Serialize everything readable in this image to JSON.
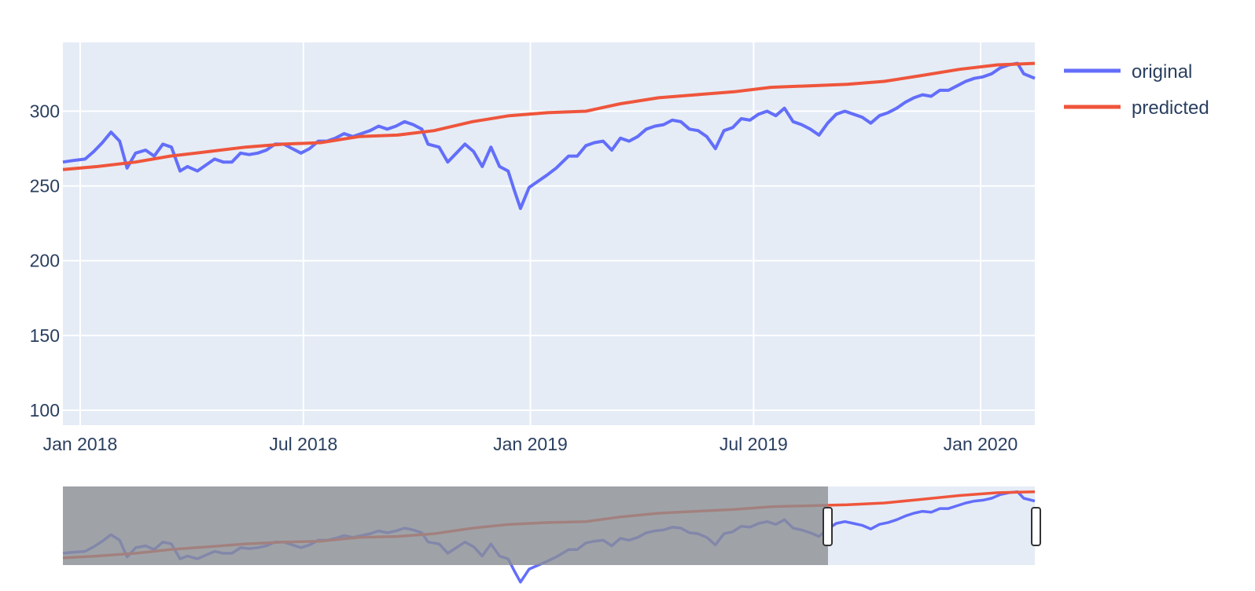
{
  "chart_data": {
    "type": "line",
    "title": "",
    "xlabel": "",
    "ylabel": "",
    "xlim": [
      "2017-12-18",
      "2020-02-14"
    ],
    "ylim": [
      90,
      346
    ],
    "x_ticks": [
      "Jan 2018",
      "Jul 2018",
      "Jan 2019",
      "Jul 2019",
      "Jan 2020"
    ],
    "y_ticks": [
      "100",
      "150",
      "200",
      "250",
      "300"
    ],
    "grid": true,
    "legend_position": "top-right",
    "colors": {
      "original": "#636efa",
      "predicted": "#ef553b",
      "plot_bg": "#e5ecf6",
      "range_mask": "#8c8e92"
    },
    "series": [
      {
        "name": "original",
        "points": [
          [
            "2017-12-18",
            266
          ],
          [
            "2017-12-26",
            267
          ],
          [
            "2018-01-05",
            268
          ],
          [
            "2018-01-12",
            273
          ],
          [
            "2018-01-19",
            279
          ],
          [
            "2018-01-26",
            286
          ],
          [
            "2018-02-02",
            280
          ],
          [
            "2018-02-08",
            262
          ],
          [
            "2018-02-15",
            272
          ],
          [
            "2018-02-23",
            274
          ],
          [
            "2018-03-02",
            270
          ],
          [
            "2018-03-09",
            278
          ],
          [
            "2018-03-16",
            276
          ],
          [
            "2018-03-23",
            260
          ],
          [
            "2018-03-29",
            263
          ],
          [
            "2018-04-06",
            260
          ],
          [
            "2018-04-13",
            264
          ],
          [
            "2018-04-20",
            268
          ],
          [
            "2018-04-27",
            266
          ],
          [
            "2018-05-04",
            266
          ],
          [
            "2018-05-11",
            272
          ],
          [
            "2018-05-18",
            271
          ],
          [
            "2018-05-25",
            272
          ],
          [
            "2018-06-01",
            274
          ],
          [
            "2018-06-08",
            278
          ],
          [
            "2018-06-15",
            278
          ],
          [
            "2018-06-22",
            275
          ],
          [
            "2018-06-29",
            272
          ],
          [
            "2018-07-06",
            275
          ],
          [
            "2018-07-13",
            280
          ],
          [
            "2018-07-20",
            280
          ],
          [
            "2018-07-27",
            282
          ],
          [
            "2018-08-03",
            285
          ],
          [
            "2018-08-10",
            283
          ],
          [
            "2018-08-17",
            285
          ],
          [
            "2018-08-24",
            287
          ],
          [
            "2018-08-31",
            290
          ],
          [
            "2018-09-07",
            288
          ],
          [
            "2018-09-14",
            290
          ],
          [
            "2018-09-21",
            293
          ],
          [
            "2018-09-28",
            291
          ],
          [
            "2018-10-05",
            288
          ],
          [
            "2018-10-10",
            278
          ],
          [
            "2018-10-19",
            276
          ],
          [
            "2018-10-26",
            266
          ],
          [
            "2018-11-02",
            272
          ],
          [
            "2018-11-09",
            278
          ],
          [
            "2018-11-16",
            273
          ],
          [
            "2018-11-23",
            263
          ],
          [
            "2018-11-30",
            276
          ],
          [
            "2018-12-07",
            263
          ],
          [
            "2018-12-14",
            260
          ],
          [
            "2018-12-19",
            247
          ],
          [
            "2018-12-24",
            235
          ],
          [
            "2018-12-31",
            249
          ],
          [
            "2019-01-07",
            253
          ],
          [
            "2019-01-14",
            257
          ],
          [
            "2019-01-22",
            262
          ],
          [
            "2019-02-01",
            270
          ],
          [
            "2019-02-08",
            270
          ],
          [
            "2019-02-15",
            277
          ],
          [
            "2019-02-22",
            279
          ],
          [
            "2019-03-01",
            280
          ],
          [
            "2019-03-08",
            274
          ],
          [
            "2019-03-15",
            282
          ],
          [
            "2019-03-22",
            280
          ],
          [
            "2019-03-29",
            283
          ],
          [
            "2019-04-05",
            288
          ],
          [
            "2019-04-12",
            290
          ],
          [
            "2019-04-19",
            291
          ],
          [
            "2019-04-26",
            294
          ],
          [
            "2019-05-03",
            293
          ],
          [
            "2019-05-10",
            288
          ],
          [
            "2019-05-17",
            287
          ],
          [
            "2019-05-24",
            283
          ],
          [
            "2019-05-31",
            275
          ],
          [
            "2019-06-07",
            287
          ],
          [
            "2019-06-14",
            289
          ],
          [
            "2019-06-21",
            295
          ],
          [
            "2019-06-28",
            294
          ],
          [
            "2019-07-05",
            298
          ],
          [
            "2019-07-12",
            300
          ],
          [
            "2019-07-19",
            297
          ],
          [
            "2019-07-26",
            302
          ],
          [
            "2019-08-02",
            293
          ],
          [
            "2019-08-09",
            291
          ],
          [
            "2019-08-16",
            288
          ],
          [
            "2019-08-23",
            284
          ],
          [
            "2019-08-30",
            292
          ],
          [
            "2019-09-06",
            298
          ],
          [
            "2019-09-13",
            300
          ],
          [
            "2019-09-20",
            298
          ],
          [
            "2019-09-27",
            296
          ],
          [
            "2019-10-04",
            292
          ],
          [
            "2019-10-11",
            297
          ],
          [
            "2019-10-18",
            299
          ],
          [
            "2019-10-25",
            302
          ],
          [
            "2019-11-01",
            306
          ],
          [
            "2019-11-08",
            309
          ],
          [
            "2019-11-15",
            311
          ],
          [
            "2019-11-22",
            310
          ],
          [
            "2019-11-29",
            314
          ],
          [
            "2019-12-06",
            314
          ],
          [
            "2019-12-13",
            317
          ],
          [
            "2019-12-20",
            320
          ],
          [
            "2019-12-27",
            322
          ],
          [
            "2020-01-03",
            323
          ],
          [
            "2020-01-10",
            325
          ],
          [
            "2020-01-17",
            329
          ],
          [
            "2020-01-24",
            331
          ],
          [
            "2020-01-31",
            332
          ],
          [
            "2020-02-05",
            325
          ],
          [
            "2020-02-14",
            322
          ]
        ]
      },
      {
        "name": "predicted",
        "points": [
          [
            "2017-12-18",
            261
          ],
          [
            "2018-01-15",
            263
          ],
          [
            "2018-02-15",
            266
          ],
          [
            "2018-03-15",
            270
          ],
          [
            "2018-04-15",
            273
          ],
          [
            "2018-05-15",
            276
          ],
          [
            "2018-06-15",
            278
          ],
          [
            "2018-07-15",
            279
          ],
          [
            "2018-08-15",
            283
          ],
          [
            "2018-09-15",
            284
          ],
          [
            "2018-10-15",
            287
          ],
          [
            "2018-11-15",
            293
          ],
          [
            "2018-12-15",
            297
          ],
          [
            "2019-01-15",
            299
          ],
          [
            "2019-02-15",
            300
          ],
          [
            "2019-03-15",
            305
          ],
          [
            "2019-04-15",
            309
          ],
          [
            "2019-05-15",
            311
          ],
          [
            "2019-06-15",
            313
          ],
          [
            "2019-07-15",
            316
          ],
          [
            "2019-08-15",
            317
          ],
          [
            "2019-09-15",
            318
          ],
          [
            "2019-10-15",
            320
          ],
          [
            "2019-11-15",
            324
          ],
          [
            "2019-12-15",
            328
          ],
          [
            "2020-01-15",
            331
          ],
          [
            "2020-02-14",
            332
          ]
        ]
      }
    ]
  }
}
